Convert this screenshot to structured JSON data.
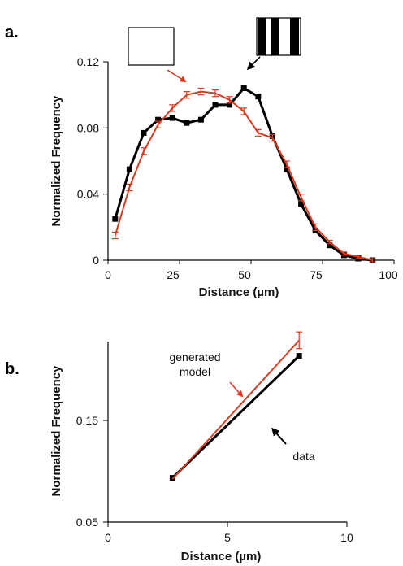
{
  "colors": {
    "data": "#000000",
    "model": "#d93a1e"
  },
  "chart_data": [
    {
      "panel": "a.",
      "type": "line",
      "xlabel": "Distance (µm)",
      "ylabel": "Normalized Frequency",
      "xlim": [
        0,
        100
      ],
      "ylim": [
        0,
        0.12
      ],
      "xticks": [
        "0",
        "25",
        "50",
        "75",
        "100"
      ],
      "yticks": [
        "0",
        "0.04",
        "0.08",
        "0.12"
      ],
      "grid": false,
      "series": [
        {
          "style": "black",
          "x": [
            2.5,
            7.5,
            12.5,
            17.5,
            22.5,
            27.5,
            32.5,
            37.5,
            42.5,
            47.5,
            52.5,
            57.5,
            62.5,
            67.5,
            72.5,
            77.5,
            82.5,
            87.5,
            92.5
          ],
          "y": [
            0.025,
            0.055,
            0.077,
            0.085,
            0.086,
            0.083,
            0.085,
            0.094,
            0.094,
            0.104,
            0.099,
            0.075,
            0.055,
            0.034,
            0.018,
            0.009,
            0.003,
            0.001,
            0.0
          ]
        },
        {
          "style": "red",
          "x": [
            2.5,
            7.5,
            12.5,
            17.5,
            22.5,
            27.5,
            32.5,
            37.5,
            42.5,
            47.5,
            52.5,
            57.5,
            62.5,
            67.5,
            72.5,
            77.5,
            82.5,
            87.5,
            92.5
          ],
          "y": [
            0.015,
            0.044,
            0.066,
            0.082,
            0.092,
            0.1,
            0.102,
            0.101,
            0.097,
            0.09,
            0.077,
            0.074,
            0.058,
            0.038,
            0.02,
            0.011,
            0.004,
            0.002,
            0.0
          ],
          "err": [
            0.002,
            0.002,
            0.002,
            0.002,
            0.002,
            0.002,
            0.002,
            0.002,
            0.002,
            0.002,
            0.002,
            0.002,
            0.002,
            0.002,
            0.002,
            0.001,
            0.001,
            0.001,
            0.001
          ]
        }
      ],
      "insets": [
        "blank-square",
        "striped-square"
      ]
    },
    {
      "panel": "b.",
      "type": "line",
      "xlabel": "Distance (µm)",
      "ylabel": "Normalized Frequency",
      "xlim": [
        0,
        10
      ],
      "ylim": [
        0.05,
        0.22
      ],
      "xticks": [
        "0",
        "5",
        "10"
      ],
      "yticks": [
        "0.05",
        "0.15"
      ],
      "grid": false,
      "series": [
        {
          "style": "black",
          "x": [
            2.7,
            8.0
          ],
          "y": [
            0.087,
            0.189
          ]
        },
        {
          "style": "red",
          "x": [
            2.7,
            8.0
          ],
          "y": [
            0.086,
            0.202
          ],
          "err": [
            0.0,
            0.007
          ]
        }
      ],
      "annotations": [
        "generated model",
        "data"
      ]
    }
  ]
}
